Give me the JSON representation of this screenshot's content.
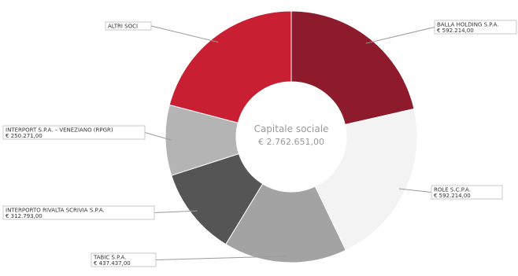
{
  "chart_data": {
    "type": "pie",
    "center_label": {
      "title": "Capitale sociale",
      "value": "€ 2.762.651,00"
    },
    "slices": [
      {
        "label": "BALLA HOLDING S.P.A.",
        "amount_text": "€ 592.214,00",
        "value": 592214,
        "color": "#8e1b2b"
      },
      {
        "label": "ROLE S.C.P.A.",
        "amount_text": "€ 592.214,00",
        "value": 592214,
        "color": "#f3f3f3"
      },
      {
        "label": "TABIC S.P.A.",
        "amount_text": "€ 437.437,00",
        "value": 437437,
        "color": "#a3a3a3"
      },
      {
        "label": "INTERPORTO RIVALTA SCRIVIA S.P.A.",
        "amount_text": "€ 312.793,00",
        "value": 312793,
        "color": "#555555"
      },
      {
        "label": "INTERPORT S.P.A. – VENEZIANO (RPGR)",
        "amount_text": "€ 250.271,00",
        "value": 250271,
        "color": "#b4b4b4"
      },
      {
        "label": "ALTRI SOCI",
        "amount_text": "",
        "value": 577722,
        "color": "#c81f32"
      }
    ],
    "start_angle_deg": 0,
    "legend": "callouts"
  }
}
